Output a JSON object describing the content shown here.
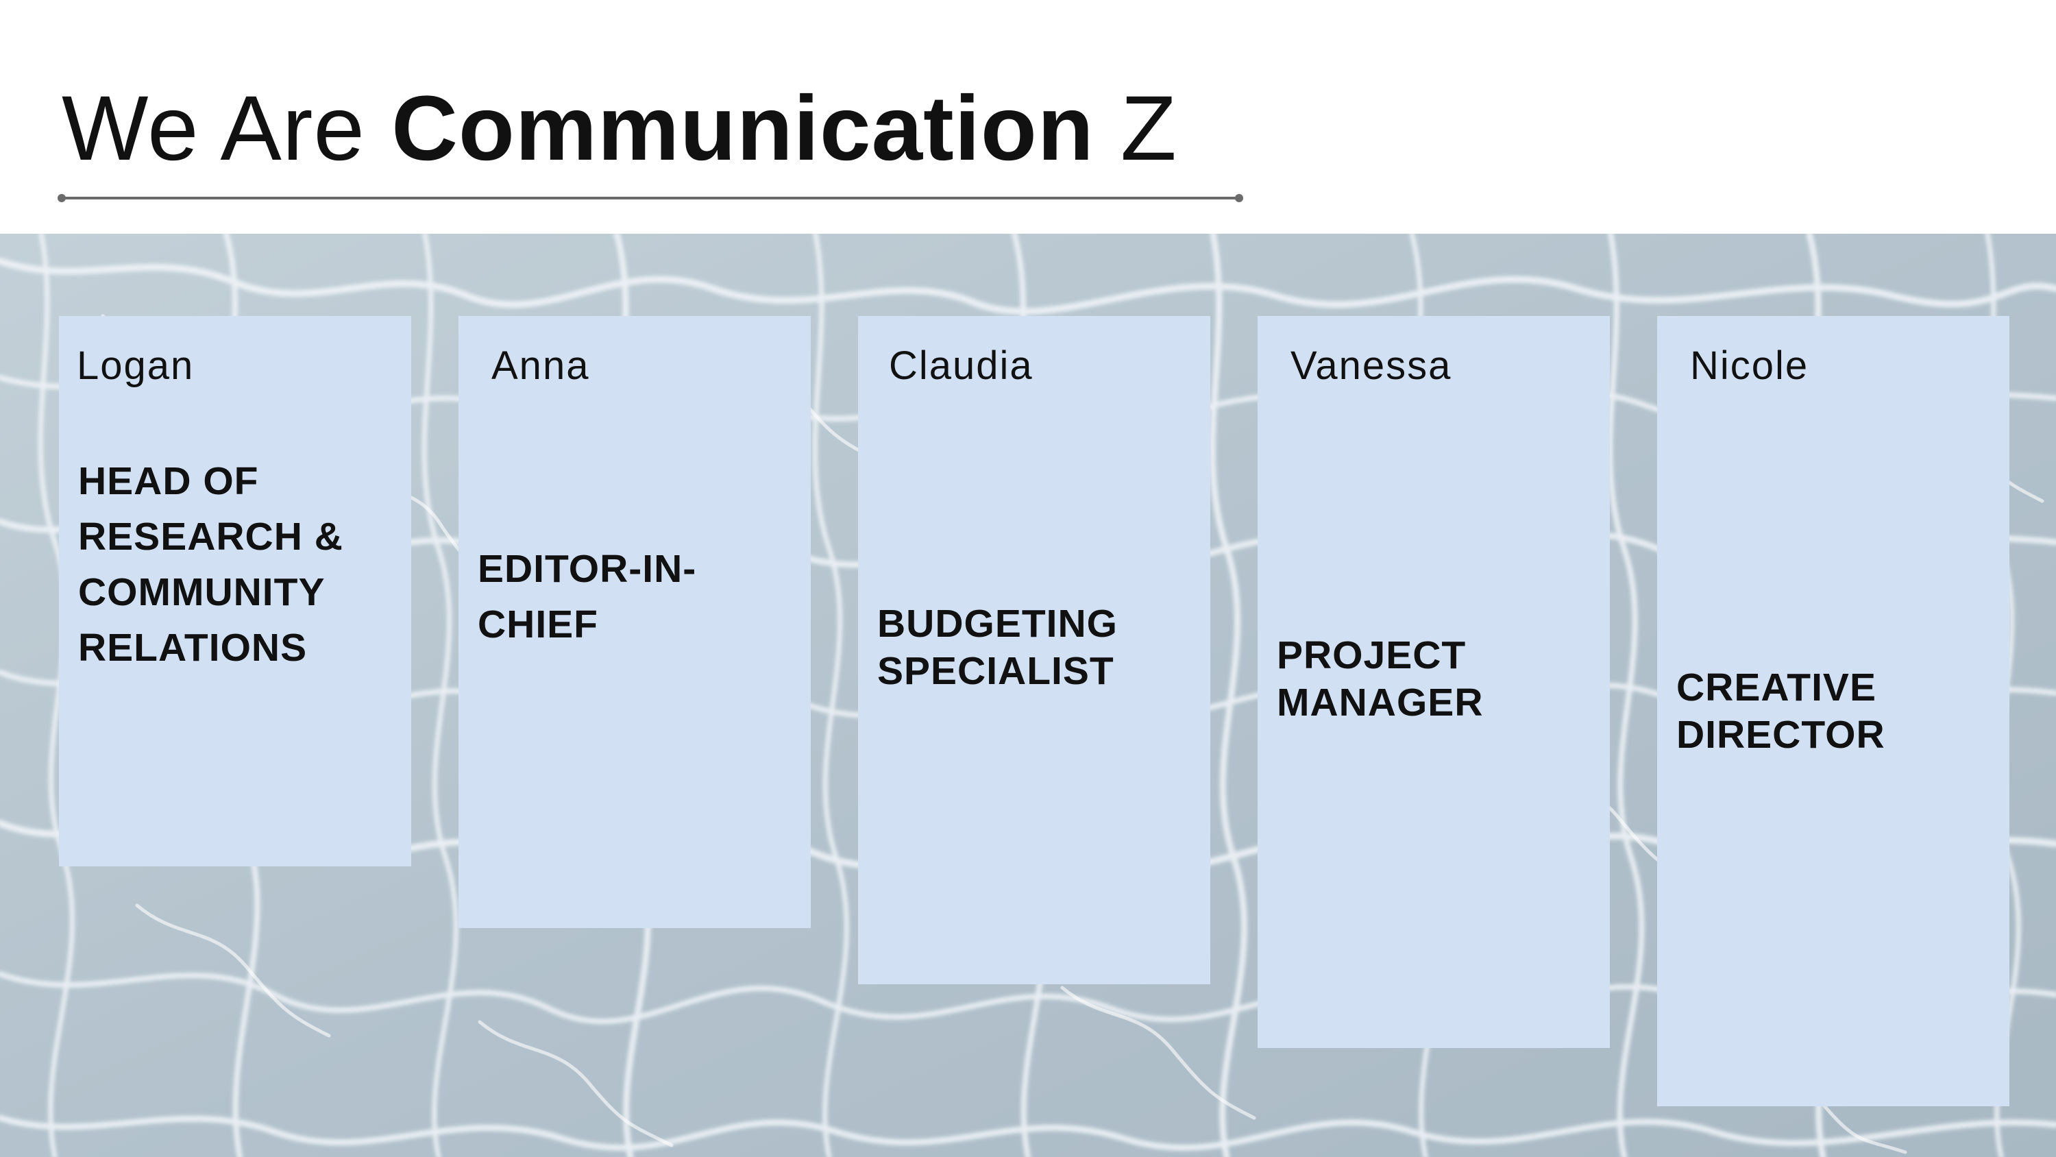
{
  "title": {
    "prefix": "We Are",
    "bold": "Communication",
    "suffix": "Z"
  },
  "colors": {
    "card_background": "#d1e1f3",
    "rule": "#6b6b6b",
    "water": "#b9c7d0"
  },
  "team": [
    {
      "name": "Logan",
      "role": "HEAD OF\nRESEARCH &\nCOMMUNITY\nRELATIONS"
    },
    {
      "name": "Anna",
      "role": "EDITOR-IN-\nCHIEF"
    },
    {
      "name": "Claudia",
      "role": "BUDGETING\nSPECIALIST"
    },
    {
      "name": "Vanessa",
      "role": "PROJECT\nMANAGER"
    },
    {
      "name": "Nicole",
      "role": "CREATIVE\nDIRECTOR"
    }
  ]
}
